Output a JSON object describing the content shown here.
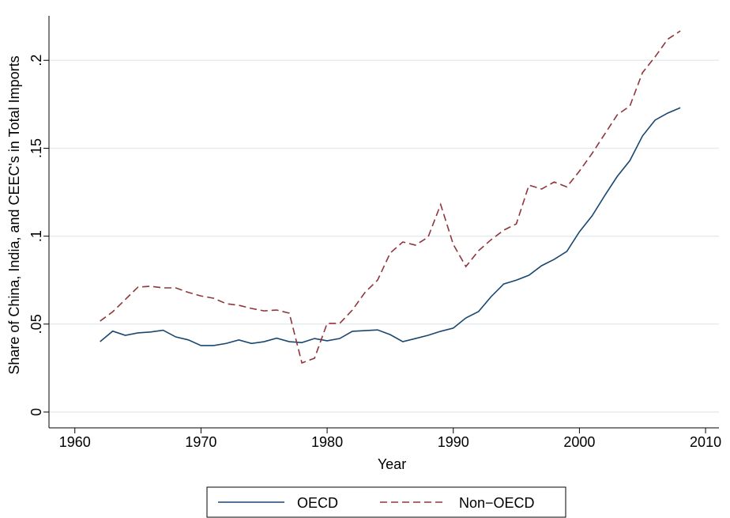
{
  "chart_data": {
    "type": "line",
    "x_label": "Year",
    "y_label": "Share of China, India, and CEEC's in Total Imports",
    "x": [
      1962,
      1963,
      1964,
      1965,
      1966,
      1967,
      1968,
      1969,
      1970,
      1971,
      1972,
      1973,
      1974,
      1975,
      1976,
      1977,
      1978,
      1979,
      1980,
      1981,
      1982,
      1983,
      1984,
      1985,
      1986,
      1987,
      1988,
      1989,
      1990,
      1991,
      1992,
      1993,
      1994,
      1995,
      1996,
      1997,
      1998,
      1999,
      2000,
      2001,
      2002,
      2003,
      2004,
      2005,
      2006,
      2007,
      2008
    ],
    "series": [
      {
        "name": "OECD",
        "color": "#1a476f",
        "dash": false,
        "values": [
          0.04,
          0.046,
          0.0436,
          0.045,
          0.0455,
          0.0465,
          0.0427,
          0.041,
          0.0378,
          0.0378,
          0.039,
          0.041,
          0.039,
          0.04,
          0.042,
          0.04,
          0.0395,
          0.0418,
          0.0405,
          0.0418,
          0.0459,
          0.0463,
          0.0467,
          0.044,
          0.04,
          0.0418,
          0.0436,
          0.0459,
          0.0477,
          0.0535,
          0.0571,
          0.0656,
          0.0728,
          0.075,
          0.0778,
          0.0832,
          0.0868,
          0.0913,
          0.1025,
          0.1115,
          0.123,
          0.134,
          0.143,
          0.157,
          0.166,
          0.17,
          0.173
        ]
      },
      {
        "name": "Non−OECD",
        "color": "#90353b",
        "dash": true,
        "values": [
          0.0517,
          0.057,
          0.064,
          0.071,
          0.0715,
          0.0706,
          0.0706,
          0.068,
          0.066,
          0.0647,
          0.0616,
          0.0607,
          0.0589,
          0.0575,
          0.058,
          0.0562,
          0.0279,
          0.0306,
          0.0504,
          0.0504,
          0.058,
          0.068,
          0.075,
          0.0904,
          0.0967,
          0.0949,
          0.0994,
          0.118,
          0.0953,
          0.0827,
          0.0917,
          0.098,
          0.1034,
          0.107,
          0.129,
          0.1268,
          0.1308,
          0.128,
          0.137,
          0.147,
          0.158,
          0.169,
          0.174,
          0.193,
          0.202,
          0.212,
          0.2167
        ]
      }
    ],
    "xlim": [
      1957.95,
      2011.06
    ],
    "xticks": [
      1960,
      1970,
      1980,
      1990,
      2000,
      2010
    ],
    "ylim": [
      -0.009,
      0.2253
    ],
    "yticks": [
      0,
      {
        "value": 0.05,
        "label": ".05"
      },
      {
        "value": 0.1,
        "label": ".1"
      },
      {
        "value": 0.15,
        "label": ".15"
      },
      {
        "value": 0.2,
        "label": ".2"
      }
    ],
    "grid": true,
    "legend": "bottom"
  }
}
